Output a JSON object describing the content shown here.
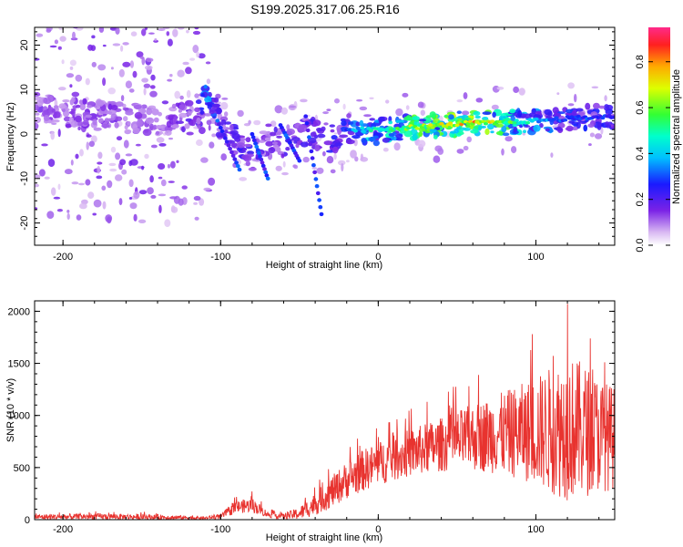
{
  "figure_title": "S199.2025.317.06.25.R16",
  "chart_data": [
    {
      "type": "heatmap",
      "title": "",
      "xlabel": "Height of straight line (km)",
      "ylabel": "Frequency (Hz)",
      "xlim": [
        -218,
        150
      ],
      "ylim": [
        -25,
        24
      ],
      "xticks": [
        -200,
        -100,
        0,
        100
      ],
      "yticks": [
        -20,
        -10,
        0,
        10,
        20
      ],
      "colorbar": {
        "label": "Normalized spectral amplitude",
        "range": [
          0,
          0.95
        ],
        "ticks": [
          0.0,
          0.2,
          0.4,
          0.6,
          0.8
        ],
        "colormap": "rainbow (purple-blue-cyan-green-yellow-red-magenta)"
      },
      "ridge": {
        "description": "main spectral ridge (frequency vs height)",
        "x": [
          -218,
          -200,
          -170,
          -140,
          -115,
          -108,
          -100,
          -90,
          -80,
          -70,
          -60,
          -50,
          -40,
          -30,
          -20,
          -10,
          0,
          20,
          40,
          60,
          80,
          100,
          120,
          150
        ],
        "y": [
          6,
          5,
          4,
          3,
          4,
          10,
          2,
          -2,
          -5,
          -1,
          -3,
          1,
          0,
          -1,
          1,
          1,
          1,
          1.5,
          2,
          2.5,
          2.5,
          3,
          3.5,
          4
        ],
        "amplitude": [
          0.15,
          0.18,
          0.2,
          0.15,
          0.25,
          0.45,
          0.25,
          0.3,
          0.28,
          0.2,
          0.3,
          0.25,
          0.28,
          0.3,
          0.35,
          0.5,
          0.55,
          0.7,
          0.78,
          0.85,
          0.72,
          0.45,
          0.35,
          0.3
        ]
      }
    },
    {
      "type": "line",
      "title": "",
      "xlabel": "Height of straight line (km)",
      "ylabel": "SNR (10 * v/v)",
      "xlim": [
        -218,
        150
      ],
      "ylim": [
        0,
        2100
      ],
      "xticks": [
        -200,
        -100,
        0,
        100
      ],
      "yticks": [
        0,
        500,
        1000,
        1500,
        2000
      ],
      "color": "#e8332f",
      "envelope": {
        "description": "approximate trend of the SNR trace (mean level and spread)",
        "x": [
          -218,
          -180,
          -140,
          -110,
          -100,
          -90,
          -80,
          -70,
          -60,
          -50,
          -40,
          -30,
          -20,
          -10,
          0,
          20,
          40,
          60,
          80,
          100,
          110,
          120,
          130,
          140,
          150
        ],
        "mean": [
          25,
          30,
          25,
          15,
          30,
          120,
          140,
          50,
          30,
          60,
          150,
          260,
          380,
          470,
          540,
          640,
          720,
          790,
          830,
          850,
          860,
          880,
          860,
          820,
          780
        ],
        "spread": [
          25,
          30,
          25,
          15,
          25,
          60,
          70,
          30,
          30,
          60,
          110,
          150,
          180,
          200,
          210,
          230,
          260,
          320,
          400,
          520,
          620,
          700,
          650,
          550,
          500
        ],
        "peak": [
          120,
          2070
        ]
      }
    }
  ]
}
